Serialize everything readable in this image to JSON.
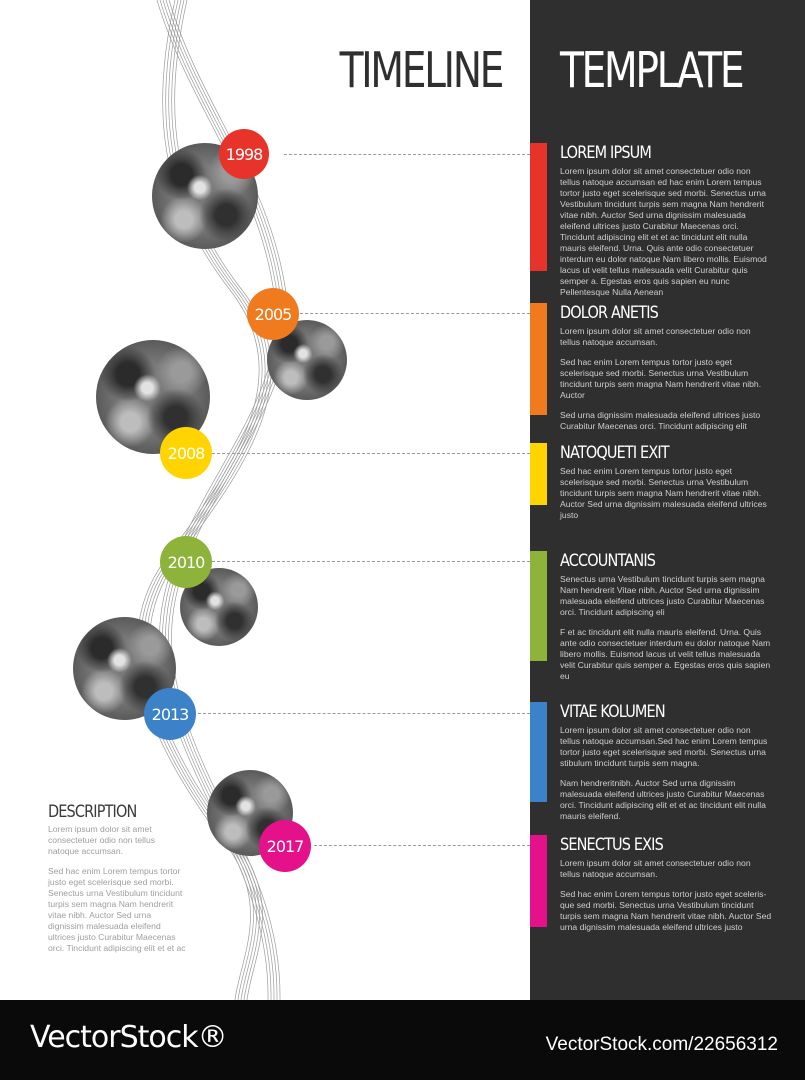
{
  "header": {
    "title_left": "TIMELINE",
    "title_right": "TEMPLATE"
  },
  "colors": {
    "panel": "#2f2f30",
    "red": "#e8332a",
    "orange": "#f07b1e",
    "yellow": "#ffd400",
    "green": "#8db33a",
    "blue": "#3c82c8",
    "pink": "#e5118b"
  },
  "timeline": [
    {
      "year": "1998",
      "color": "#e8332a",
      "heading": "LOREM IPSUM",
      "paragraphs": [
        "Lorem ipsum dolor sit amet consectetuer odio non tellus natoque accumsan ed hac enim Lorem tempus tortor justo eget scelerisque sed morbi. Senectus urna Vestibulum tincidunt turpis sem magna Nam hendrerit vitae nibh. Auctor Sed urna dignissim malesuada eleifend ultrices justo Curabitur Maecenas orci. Tincidunt adipiscing elit et et ac tincidunt elit nulla mauris eleifend. Urna. Quis ante odio consectetuer interdum eu dolor natoque Nam libero mollis. Euismod lacus ut velit tellus malesuada velit Curabitur quis semper a. Egestas eros quis sapien eu nunc Pellentesque Nulla Aenean"
      ]
    },
    {
      "year": "2005",
      "color": "#f07b1e",
      "heading": "DOLOR ANETIS",
      "paragraphs": [
        "Lorem ipsum dolor sit amet consectetuer odio non tellus natoque accumsan.",
        "Sed hac enim Lorem tempus tortor justo eget scelerisque sed morbi. Senectus urna Vestibulum tincidunt turpis sem magna Nam hendrerit vitae nibh. Auctor",
        "Sed urna dignissim malesuada eleifend ultrices justo Curabitur Maecenas orci. Tincidunt adipiscing elit"
      ]
    },
    {
      "year": "2008",
      "color": "#ffd400",
      "heading": "NATOQUETI EXIT",
      "paragraphs": [
        "Sed hac enim Lorem tempus tortor justo eget scelerisque sed morbi. Senectus urna Vestibulum tincidunt turpis sem magna Nam hendrerit vitae nibh. Auctor Sed urna dignissim malesuada eleifend ultrices justo"
      ]
    },
    {
      "year": "2010",
      "color": "#8db33a",
      "heading": "ACCOUNTANIS",
      "paragraphs": [
        "Senectus urna Vestibulum tincidunt turpis sem magna Nam hendrerit Vitae nibh. Auctor Sed urna dignissim malesuada eleifend ultrices justo Curabitur Maecenas orci. Tincidunt adipiscing eli",
        "F et ac tincidunt elit nulla mauris eleifend. Urna. Quis ante odio consectetuer interdum eu dolor natoque Nam libero mollis. Euismod lacus ut velit tellus malesuada velit Curabitur quis semper a. Egestas eros quis sapien eu"
      ]
    },
    {
      "year": "2013",
      "color": "#3c82c8",
      "heading": "VITAE KOLUMEN",
      "paragraphs": [
        "Lorem ipsum dolor sit amet consectetuer odio non tellus natoque accumsan.Sed hac enim Lorem tempus tortor justo eget scelerisque sed morbi. Senectus urna stibulum tincidunt turpis sem magna.",
        "Nam hendreritnibh. Auctor Sed urna dignissim malesuada eleifend ultrices justo Curabitur Maecenas orci. Tincidunt adipiscing elit et et ac tincidunt elit nulla mauris eleifend."
      ]
    },
    {
      "year": "2017",
      "color": "#e5118b",
      "heading": "SENECTUS EXIS",
      "paragraphs": [
        "Lorem ipsum dolor sit amet consectetuer odio non tellus natoque accumsan.",
        "Sed hac enim Lorem tempus tortor justo eget sceleris-que sed morbi. Senectus urna Vestibulum tincidunt turpis sem magna Nam hendrerit vitae nibh. Auctor Sed urna dignissim malesuada eleifend ultrices justo"
      ]
    }
  ],
  "description": {
    "heading": "DESCRIPTION",
    "paragraphs": [
      "Lorem ipsum dolor sit amet consectetuer odio non tellus natoque accumsan.",
      "Sed hac enim Lorem tempus tortor justo eget scelerisque sed morbi. Senectus urna Vestibulum tincidunt turpis sem magna Nam hendrerit vitae nibh. Auctor Sed urna dignissim malesuada eleifend ultrices justo Curabitur Maecenas orci. Tincidunt adipiscing elit et et ac"
    ]
  },
  "footer": {
    "logo": "VectorStock®",
    "image_id": "VectorStock.com/22656312"
  }
}
